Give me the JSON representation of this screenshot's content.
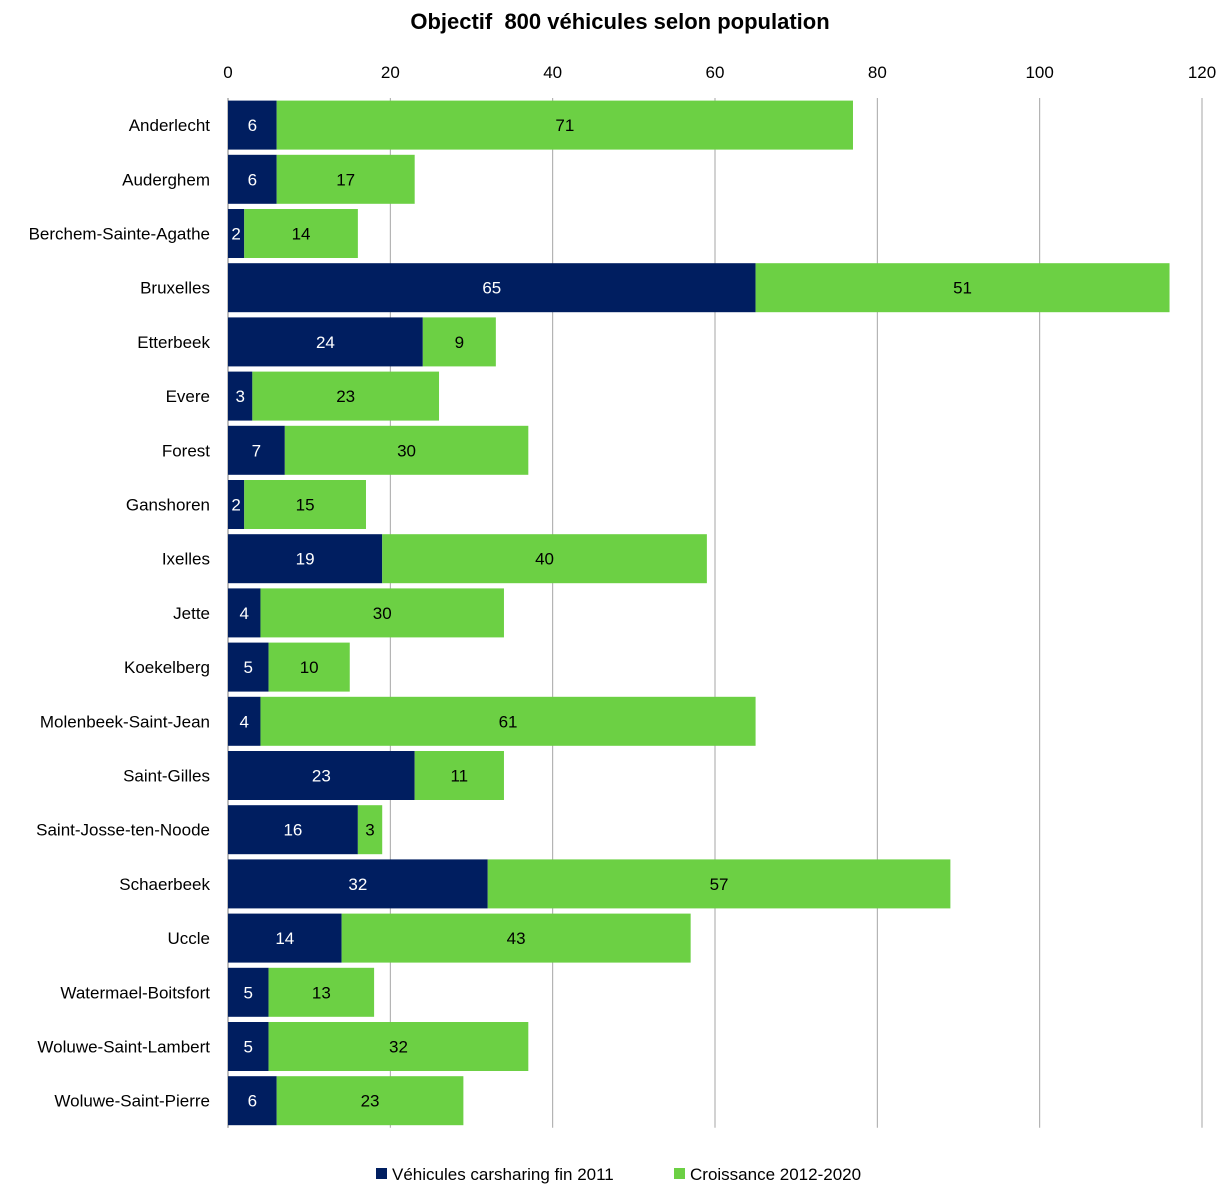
{
  "chart_data": {
    "type": "bar",
    "orientation": "horizontal",
    "stacked": true,
    "title": "Objectif  800 véhicules selon population",
    "xlabel": "",
    "ylabel": "",
    "xlim": [
      0,
      120
    ],
    "x_ticks": [
      0,
      20,
      40,
      60,
      80,
      100,
      120
    ],
    "grid": "vertical",
    "legend_position": "bottom",
    "categories": [
      "Anderlecht",
      "Auderghem",
      "Berchem-Sainte-Agathe",
      "Bruxelles",
      "Etterbeek",
      "Evere",
      "Forest",
      "Ganshoren",
      "Ixelles",
      "Jette",
      "Koekelberg",
      "Molenbeek-Saint-Jean",
      "Saint-Gilles",
      "Saint-Josse-ten-Noode",
      "Schaerbeek",
      "Uccle",
      "Watermael-Boitsfort",
      "Woluwe-Saint-Lambert",
      "Woluwe-Saint-Pierre"
    ],
    "series": [
      {
        "name": "Véhicules carsharing fin 2011",
        "color": "#001e60",
        "label_color": "#ffffff",
        "values": [
          6,
          6,
          2,
          65,
          24,
          3,
          7,
          2,
          19,
          4,
          5,
          4,
          23,
          16,
          32,
          14,
          5,
          5,
          6
        ]
      },
      {
        "name": "Croissance 2012-2020",
        "color": "#6cd044",
        "label_color": "#000000",
        "values": [
          71,
          17,
          14,
          51,
          9,
          23,
          30,
          15,
          40,
          30,
          10,
          61,
          11,
          3,
          57,
          43,
          13,
          32,
          23
        ]
      }
    ]
  }
}
